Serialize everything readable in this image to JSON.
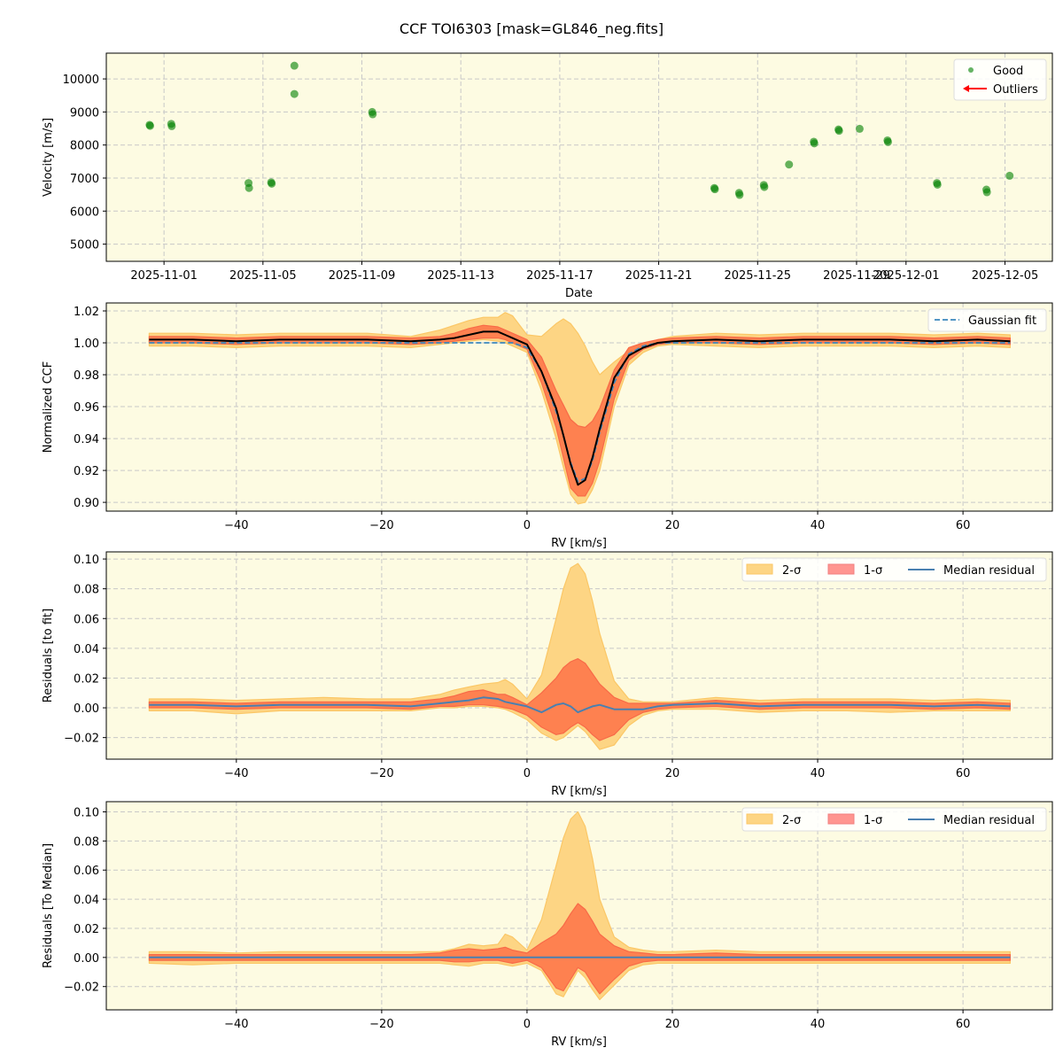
{
  "figure": {
    "title": "CCF TOI6303 [mask=GL846_neg.fits]"
  },
  "colors": {
    "background": "#fdfbe2",
    "good": "#008000",
    "outlier": "#ff0000",
    "band2": "#fdd584",
    "band1": "#fe8150",
    "band2_legend": "#fdd584",
    "band1_legend": "#ff9590",
    "median_ccf": "#000000",
    "fit": "#3b87bd",
    "median_residual": "#4a80b0",
    "grid": "#c8c8c8"
  },
  "chart_data": [
    {
      "type": "scatter",
      "xlabel": "Date",
      "ylabel": "Velocity [m/s]",
      "xlim": [
        "2025-10-29T16:00",
        "2025-12-06T22:00"
      ],
      "ylim": [
        4480,
        10780
      ],
      "xticks": [
        "2025-11-01",
        "2025-11-05",
        "2025-11-09",
        "2025-11-13",
        "2025-11-17",
        "2025-11-21",
        "2025-11-25",
        "2025-11-29",
        "2025-12-01",
        "2025-12-05"
      ],
      "yticks": [
        5000,
        6000,
        7000,
        8000,
        9000,
        10000
      ],
      "grid": true,
      "legend": {
        "placement": "top-right",
        "entries": [
          "Good",
          "Outliers"
        ]
      },
      "series": [
        {
          "name": "Good",
          "points": [
            [
              "2025-10-31T10:00",
              8610
            ],
            [
              "2025-10-31T10:30",
              8580
            ],
            [
              "2025-11-01T07:00",
              8640
            ],
            [
              "2025-11-01T07:30",
              8570
            ],
            [
              "2025-11-04T10:00",
              6850
            ],
            [
              "2025-11-04T10:30",
              6700
            ],
            [
              "2025-11-05T08:00",
              6870
            ],
            [
              "2025-11-05T08:30",
              6830
            ],
            [
              "2025-11-06T06:30",
              10400
            ],
            [
              "2025-11-06T06:30",
              9545
            ],
            [
              "2025-11-09T10:00",
              9000
            ],
            [
              "2025-11-09T10:30",
              8930
            ],
            [
              "2025-11-23T06:00",
              6700
            ],
            [
              "2025-11-23T06:30",
              6660
            ],
            [
              "2025-11-24T06:00",
              6550
            ],
            [
              "2025-11-24T06:30",
              6490
            ],
            [
              "2025-11-25T06:00",
              6790
            ],
            [
              "2025-11-25T06:30",
              6730
            ],
            [
              "2025-11-26T06:30",
              7410
            ],
            [
              "2025-11-27T06:30",
              8100
            ],
            [
              "2025-11-27T07:00",
              8050
            ],
            [
              "2025-11-28T06:30",
              8470
            ],
            [
              "2025-11-28T07:00",
              8430
            ],
            [
              "2025-11-29T03:00",
              8490
            ],
            [
              "2025-11-30T06:00",
              8140
            ],
            [
              "2025-11-30T06:30",
              8090
            ],
            [
              "2025-12-02T06:00",
              6850
            ],
            [
              "2025-12-02T06:30",
              6800
            ],
            [
              "2025-12-04T06:00",
              6650
            ],
            [
              "2025-12-04T06:30",
              6570
            ],
            [
              "2025-12-05T04:30",
              7070
            ]
          ]
        },
        {
          "name": "Outliers",
          "points": []
        }
      ]
    },
    {
      "type": "area",
      "xlabel": "RV [km/s]",
      "ylabel": "Normalized CCF",
      "xlim": [
        -57.9,
        72.3
      ],
      "ylim": [
        0.8945,
        1.025
      ],
      "xticks": [
        -40,
        -20,
        0,
        20,
        40,
        60
      ],
      "yticks": [
        0.9,
        0.92,
        0.94,
        0.96,
        0.98,
        1.0,
        1.02
      ],
      "ytick_decimals": 2,
      "grid": true,
      "legend": {
        "placement": "top-right",
        "entries": [
          "Gaussian fit"
        ]
      },
      "x": [
        -52,
        -46,
        -40,
        -34,
        -28,
        -22,
        -16,
        -12,
        -10,
        -8,
        -6,
        -4,
        -3,
        -2,
        0,
        2,
        4,
        5,
        6,
        7,
        8,
        9,
        10,
        12,
        14,
        16,
        18,
        20,
        26,
        32,
        38,
        44,
        50,
        56,
        62,
        66.5
      ],
      "band2": {
        "lo": [
          0.998,
          0.998,
          0.997,
          0.998,
          0.998,
          0.998,
          0.997,
          0.999,
          1.0,
          1.001,
          1.002,
          1.001,
          1.0,
          0.998,
          0.994,
          0.97,
          0.94,
          0.922,
          0.905,
          0.899,
          0.9,
          0.908,
          0.92,
          0.96,
          0.986,
          0.994,
          0.998,
          0.999,
          0.998,
          0.997,
          0.998,
          0.998,
          0.998,
          0.997,
          0.998,
          0.997
        ],
        "hi": [
          1.006,
          1.006,
          1.005,
          1.006,
          1.006,
          1.006,
          1.004,
          1.008,
          1.011,
          1.014,
          1.016,
          1.016,
          1.019,
          1.017,
          1.005,
          1.004,
          1.012,
          1.015,
          1.012,
          1.006,
          0.998,
          0.988,
          0.98,
          0.988,
          0.995,
          0.999,
          1.002,
          1.004,
          1.006,
          1.005,
          1.006,
          1.006,
          1.006,
          1.005,
          1.006,
          1.005
        ]
      },
      "band1": {
        "lo": [
          1.0,
          1.0,
          0.999,
          1.0,
          1.0,
          1.0,
          0.999,
          1.0,
          1.001,
          1.002,
          1.003,
          1.003,
          1.002,
          1.0,
          0.996,
          0.975,
          0.947,
          0.928,
          0.909,
          0.904,
          0.904,
          0.912,
          0.926,
          0.965,
          0.989,
          0.996,
          0.999,
          1.0,
          1.0,
          0.999,
          1.0,
          1.0,
          1.0,
          0.999,
          1.0,
          0.999
        ],
        "hi": [
          1.004,
          1.004,
          1.003,
          1.004,
          1.004,
          1.004,
          1.003,
          1.004,
          1.006,
          1.009,
          1.011,
          1.01,
          1.008,
          1.006,
          1.002,
          0.991,
          0.97,
          0.961,
          0.952,
          0.948,
          0.947,
          0.951,
          0.959,
          0.983,
          0.997,
          1.0,
          1.002,
          1.003,
          1.004,
          1.003,
          1.004,
          1.004,
          1.004,
          1.003,
          1.004,
          1.003
        ]
      },
      "median": [
        1.002,
        1.002,
        1.001,
        1.002,
        1.002,
        1.002,
        1.001,
        1.002,
        1.003,
        1.005,
        1.007,
        1.007,
        1.005,
        1.003,
        0.999,
        0.982,
        0.959,
        0.942,
        0.924,
        0.911,
        0.914,
        0.928,
        0.946,
        0.978,
        0.992,
        0.997,
        1.0,
        1.001,
        1.002,
        1.001,
        1.002,
        1.002,
        1.002,
        1.001,
        1.002,
        1.001
      ],
      "series": [
        {
          "name": "Gaussian fit",
          "style": "dashed",
          "values": [
            1,
            1,
            1,
            1,
            1,
            1,
            1,
            1,
            1,
            1,
            1,
            1,
            1,
            1.0,
            0.997,
            0.982,
            0.957,
            0.942,
            0.925,
            0.913,
            0.915,
            0.926,
            0.944,
            0.975,
            0.993,
            0.998,
            1.0,
            1,
            1,
            1,
            1,
            1,
            1,
            1,
            1,
            1
          ]
        }
      ]
    },
    {
      "type": "area",
      "xlabel": "RV [km/s]",
      "ylabel": "Residuals [to fit]",
      "xlim": [
        -57.9,
        72.3
      ],
      "ylim": [
        -0.0345,
        0.1048
      ],
      "xticks": [
        -40,
        -20,
        0,
        20,
        40,
        60
      ],
      "yticks": [
        -0.02,
        0.0,
        0.02,
        0.04,
        0.06,
        0.08,
        0.1
      ],
      "ytick_decimals": 2,
      "grid": true,
      "legend": {
        "placement": "top-right",
        "entries": [
          "2-σ",
          "1-σ",
          "Median residual"
        ]
      },
      "x": [
        -52,
        -46,
        -40,
        -34,
        -28,
        -22,
        -16,
        -12,
        -10,
        -8,
        -6,
        -4,
        -3,
        -2,
        0,
        2,
        4,
        5,
        6,
        7,
        8,
        9,
        10,
        12,
        14,
        16,
        18,
        20,
        26,
        32,
        38,
        44,
        50,
        56,
        62,
        66.5
      ],
      "band2": {
        "lo": [
          -0.002,
          -0.002,
          -0.004,
          -0.002,
          -0.002,
          -0.002,
          -0.002,
          0,
          0,
          0.001,
          0.001,
          0,
          -0.001,
          -0.003,
          -0.008,
          -0.017,
          -0.022,
          -0.02,
          -0.016,
          -0.012,
          -0.016,
          -0.022,
          -0.028,
          -0.025,
          -0.012,
          -0.005,
          -0.002,
          -0.001,
          -0.001,
          -0.003,
          -0.002,
          -0.002,
          -0.003,
          -0.002,
          -0.002,
          -0.002
        ],
        "hi": [
          0.006,
          0.006,
          0.005,
          0.006,
          0.007,
          0.006,
          0.006,
          0.009,
          0.012,
          0.014,
          0.016,
          0.017,
          0.019,
          0.016,
          0.006,
          0.022,
          0.06,
          0.08,
          0.094,
          0.097,
          0.09,
          0.072,
          0.05,
          0.018,
          0.006,
          0.004,
          0.004,
          0.004,
          0.007,
          0.005,
          0.006,
          0.006,
          0.006,
          0.005,
          0.006,
          0.005
        ]
      },
      "band1": {
        "lo": [
          0,
          0,
          -0.001,
          0,
          0,
          0,
          -0.001,
          0.001,
          0.001,
          0.002,
          0.002,
          0.001,
          0,
          -0.001,
          -0.005,
          -0.013,
          -0.018,
          -0.017,
          -0.013,
          -0.01,
          -0.013,
          -0.018,
          -0.022,
          -0.018,
          -0.008,
          -0.003,
          -0.001,
          0,
          0.001,
          -0.001,
          0,
          0,
          0,
          -0.001,
          0,
          -0.001
        ],
        "hi": [
          0.004,
          0.004,
          0.003,
          0.004,
          0.004,
          0.004,
          0.004,
          0.006,
          0.008,
          0.011,
          0.012,
          0.009,
          0.009,
          0.007,
          0.002,
          0.01,
          0.02,
          0.027,
          0.031,
          0.033,
          0.03,
          0.023,
          0.016,
          0.007,
          0.003,
          0.003,
          0.003,
          0.003,
          0.005,
          0.003,
          0.004,
          0.004,
          0.004,
          0.003,
          0.004,
          0.003
        ]
      },
      "series": [
        {
          "name": "Median residual",
          "values": [
            0.002,
            0.002,
            0.001,
            0.002,
            0.002,
            0.002,
            0.001,
            0.003,
            0.004,
            0.005,
            0.007,
            0.006,
            0.004,
            0.003,
            0.001,
            -0.003,
            0.002,
            0.003,
            0.001,
            -0.003,
            -0.001,
            0.001,
            0.002,
            -0.001,
            -0.001,
            -0.001,
            0.001,
            0.002,
            0.003,
            0.001,
            0.002,
            0.002,
            0.002,
            0.001,
            0.002,
            0.001
          ]
        }
      ]
    },
    {
      "type": "area",
      "xlabel": "RV [km/s]",
      "ylabel": "Residuals [To Median]",
      "xlim": [
        -57.9,
        72.3
      ],
      "ylim": [
        -0.036,
        0.107
      ],
      "xticks": [
        -40,
        -20,
        0,
        20,
        40,
        60
      ],
      "yticks": [
        -0.02,
        0.0,
        0.02,
        0.04,
        0.06,
        0.08,
        0.1
      ],
      "ytick_decimals": 2,
      "grid": true,
      "legend": {
        "placement": "top-right",
        "entries": [
          "2-σ",
          "1-σ",
          "Median residual"
        ]
      },
      "x": [
        -52,
        -46,
        -40,
        -34,
        -28,
        -22,
        -16,
        -12,
        -10,
        -8,
        -6,
        -4,
        -3,
        -2,
        0,
        2,
        4,
        5,
        6,
        7,
        8,
        9,
        10,
        12,
        14,
        16,
        18,
        20,
        26,
        32,
        38,
        44,
        50,
        56,
        62,
        66.5
      ],
      "band2": {
        "lo": [
          -0.004,
          -0.005,
          -0.004,
          -0.004,
          -0.004,
          -0.004,
          -0.004,
          -0.004,
          -0.005,
          -0.006,
          -0.004,
          -0.004,
          -0.005,
          -0.006,
          -0.004,
          -0.009,
          -0.025,
          -0.027,
          -0.018,
          -0.009,
          -0.014,
          -0.022,
          -0.029,
          -0.019,
          -0.009,
          -0.005,
          -0.004,
          -0.004,
          -0.004,
          -0.004,
          -0.004,
          -0.004,
          -0.004,
          -0.004,
          -0.004,
          -0.004
        ],
        "hi": [
          0.004,
          0.004,
          0.003,
          0.004,
          0.004,
          0.004,
          0.004,
          0.004,
          0.006,
          0.009,
          0.008,
          0.009,
          0.016,
          0.014,
          0.005,
          0.026,
          0.063,
          0.082,
          0.095,
          0.1,
          0.09,
          0.068,
          0.04,
          0.014,
          0.007,
          0.005,
          0.004,
          0.004,
          0.005,
          0.004,
          0.004,
          0.004,
          0.004,
          0.004,
          0.004,
          0.004
        ]
      },
      "band1": {
        "lo": [
          -0.002,
          -0.002,
          -0.002,
          -0.002,
          -0.002,
          -0.002,
          -0.002,
          -0.002,
          -0.003,
          -0.003,
          -0.002,
          -0.002,
          -0.003,
          -0.004,
          -0.002,
          -0.007,
          -0.021,
          -0.023,
          -0.015,
          -0.007,
          -0.01,
          -0.018,
          -0.025,
          -0.015,
          -0.006,
          -0.003,
          -0.002,
          -0.002,
          -0.002,
          -0.002,
          -0.002,
          -0.002,
          -0.002,
          -0.002,
          -0.002,
          -0.002
        ],
        "hi": [
          0.002,
          0.002,
          0.002,
          0.002,
          0.002,
          0.002,
          0.002,
          0.003,
          0.005,
          0.006,
          0.005,
          0.006,
          0.007,
          0.005,
          0.003,
          0.01,
          0.016,
          0.022,
          0.03,
          0.037,
          0.033,
          0.025,
          0.016,
          0.008,
          0.004,
          0.003,
          0.002,
          0.002,
          0.003,
          0.002,
          0.002,
          0.002,
          0.002,
          0.002,
          0.002,
          0.002
        ]
      },
      "series": [
        {
          "name": "Median residual",
          "values": [
            0,
            0,
            0,
            0,
            0,
            0,
            0,
            0,
            0,
            0,
            0,
            0,
            0,
            0,
            0,
            0,
            0,
            0,
            0,
            0,
            0,
            0,
            0,
            0,
            0,
            0,
            0,
            0,
            0,
            0,
            0,
            0,
            0,
            0,
            0,
            0
          ]
        }
      ]
    }
  ]
}
